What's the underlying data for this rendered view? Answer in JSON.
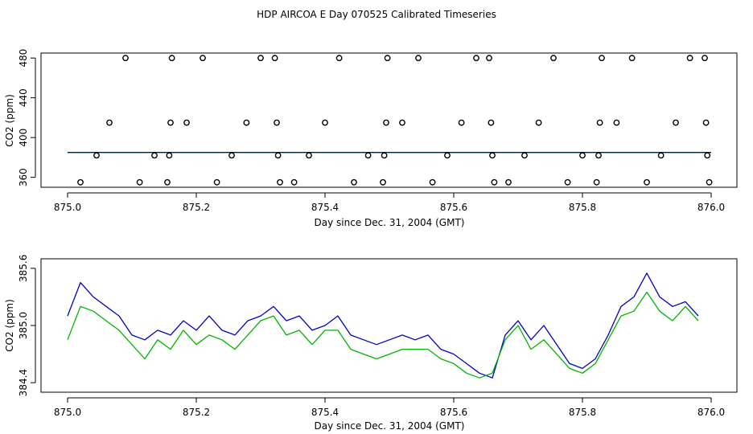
{
  "title": "HDP AIRCOA E  Day 070525  Calibrated Timeseries",
  "colors": {
    "green": "#00b400",
    "blue": "#0000c8",
    "black": "#000000"
  },
  "chart_data": [
    {
      "type": "scatter",
      "xlabel": "Day since Dec. 31, 2004 (GMT)",
      "ylabel": "CO2 (ppm)",
      "xlim": [
        875.0,
        876.0
      ],
      "ylim": [
        350,
        485
      ],
      "xticks": [
        "875.0",
        "875.2",
        "875.4",
        "875.6",
        "875.8",
        "876.0"
      ],
      "yticks": [
        "360",
        "400",
        "440",
        "480"
      ],
      "points_x": [
        875.02,
        875.045,
        875.065,
        875.09,
        875.112,
        875.135,
        875.155,
        875.158,
        875.16,
        875.162,
        875.185,
        875.21,
        875.232,
        875.255,
        875.278,
        875.3,
        875.322,
        875.325,
        875.327,
        875.33,
        875.352,
        875.375,
        875.4,
        875.422,
        875.445,
        875.467,
        875.49,
        875.492,
        875.495,
        875.497,
        875.52,
        875.545,
        875.567,
        875.59,
        875.612,
        875.635,
        875.655,
        875.658,
        875.66,
        875.663,
        875.685,
        875.71,
        875.732,
        875.755,
        875.777,
        875.8,
        875.822,
        875.825,
        875.827,
        875.83,
        875.853,
        875.877,
        875.9,
        875.922,
        875.945,
        875.967,
        875.99,
        875.992,
        875.994,
        875.997
      ],
      "points_y": [
        355,
        382,
        415,
        480,
        355,
        382,
        355,
        382,
        415,
        480,
        415,
        480,
        355,
        382,
        415,
        480,
        480,
        415,
        382,
        355,
        355,
        382,
        415,
        480,
        355,
        382,
        355,
        382,
        415,
        480,
        415,
        480,
        355,
        382,
        415,
        480,
        480,
        415,
        382,
        355,
        355,
        382,
        415,
        480,
        355,
        382,
        355,
        382,
        415,
        480,
        415,
        480,
        355,
        382,
        415,
        480,
        480,
        415,
        382,
        355
      ],
      "series": [
        {
          "color": "green",
          "x": [
            875.0,
            876.0
          ],
          "values": [
            385.0,
            385.0
          ]
        },
        {
          "color": "blue",
          "x": [
            875.0,
            876.0
          ],
          "values": [
            385.05,
            385.05
          ]
        }
      ]
    },
    {
      "type": "line",
      "xlabel": "Day since Dec. 31, 2004 (GMT)",
      "ylabel": "CO2 (ppm)",
      "xlim": [
        875.0,
        876.0
      ],
      "ylim": [
        384.3,
        385.7
      ],
      "xticks": [
        "875.0",
        "875.2",
        "875.4",
        "875.6",
        "875.8",
        "876.0"
      ],
      "yticks": [
        "384.4",
        "385.0",
        "385.6"
      ],
      "series": [
        {
          "color": "blue",
          "x": [
            875.0,
            875.02,
            875.04,
            875.06,
            875.08,
            875.1,
            875.12,
            875.14,
            875.16,
            875.18,
            875.2,
            875.22,
            875.24,
            875.26,
            875.28,
            875.3,
            875.32,
            875.34,
            875.36,
            875.38,
            875.4,
            875.42,
            875.44,
            875.46,
            875.48,
            875.5,
            875.52,
            875.54,
            875.56,
            875.58,
            875.6,
            875.62,
            875.64,
            875.66,
            875.68,
            875.7,
            875.72,
            875.74,
            875.76,
            875.78,
            875.8,
            875.82,
            875.84,
            875.86,
            875.88,
            875.9,
            875.92,
            875.94,
            875.96,
            875.98
          ],
          "values": [
            385.1,
            385.45,
            385.3,
            385.2,
            385.1,
            384.9,
            384.85,
            384.95,
            384.9,
            385.05,
            384.95,
            385.1,
            384.95,
            384.9,
            385.05,
            385.1,
            385.2,
            385.05,
            385.1,
            384.95,
            385.0,
            385.1,
            384.9,
            384.85,
            384.8,
            384.85,
            384.9,
            384.85,
            384.9,
            384.75,
            384.7,
            384.6,
            384.5,
            384.45,
            384.9,
            385.05,
            384.85,
            385.0,
            384.8,
            384.6,
            384.55,
            384.65,
            384.9,
            385.2,
            385.3,
            385.55,
            385.3,
            385.2,
            385.25,
            385.1
          ]
        },
        {
          "color": "green",
          "x": [
            875.0,
            875.02,
            875.04,
            875.06,
            875.08,
            875.1,
            875.12,
            875.14,
            875.16,
            875.18,
            875.2,
            875.22,
            875.24,
            875.26,
            875.28,
            875.3,
            875.32,
            875.34,
            875.36,
            875.38,
            875.4,
            875.42,
            875.44,
            875.46,
            875.48,
            875.5,
            875.52,
            875.54,
            875.56,
            875.58,
            875.6,
            875.62,
            875.64,
            875.66,
            875.68,
            875.7,
            875.72,
            875.74,
            875.76,
            875.78,
            875.8,
            875.82,
            875.84,
            875.86,
            875.88,
            875.9,
            875.92,
            875.94,
            875.96,
            875.98
          ],
          "values": [
            384.85,
            385.2,
            385.15,
            385.05,
            384.95,
            384.8,
            384.65,
            384.85,
            384.75,
            384.95,
            384.8,
            384.9,
            384.85,
            384.75,
            384.9,
            385.05,
            385.1,
            384.9,
            384.95,
            384.8,
            384.95,
            384.95,
            384.75,
            384.7,
            384.65,
            384.7,
            384.75,
            384.75,
            384.75,
            384.65,
            384.6,
            384.5,
            384.45,
            384.5,
            384.85,
            385.0,
            384.75,
            384.85,
            384.7,
            384.55,
            384.5,
            384.6,
            384.85,
            385.1,
            385.15,
            385.35,
            385.15,
            385.05,
            385.2,
            385.05
          ]
        }
      ]
    }
  ]
}
